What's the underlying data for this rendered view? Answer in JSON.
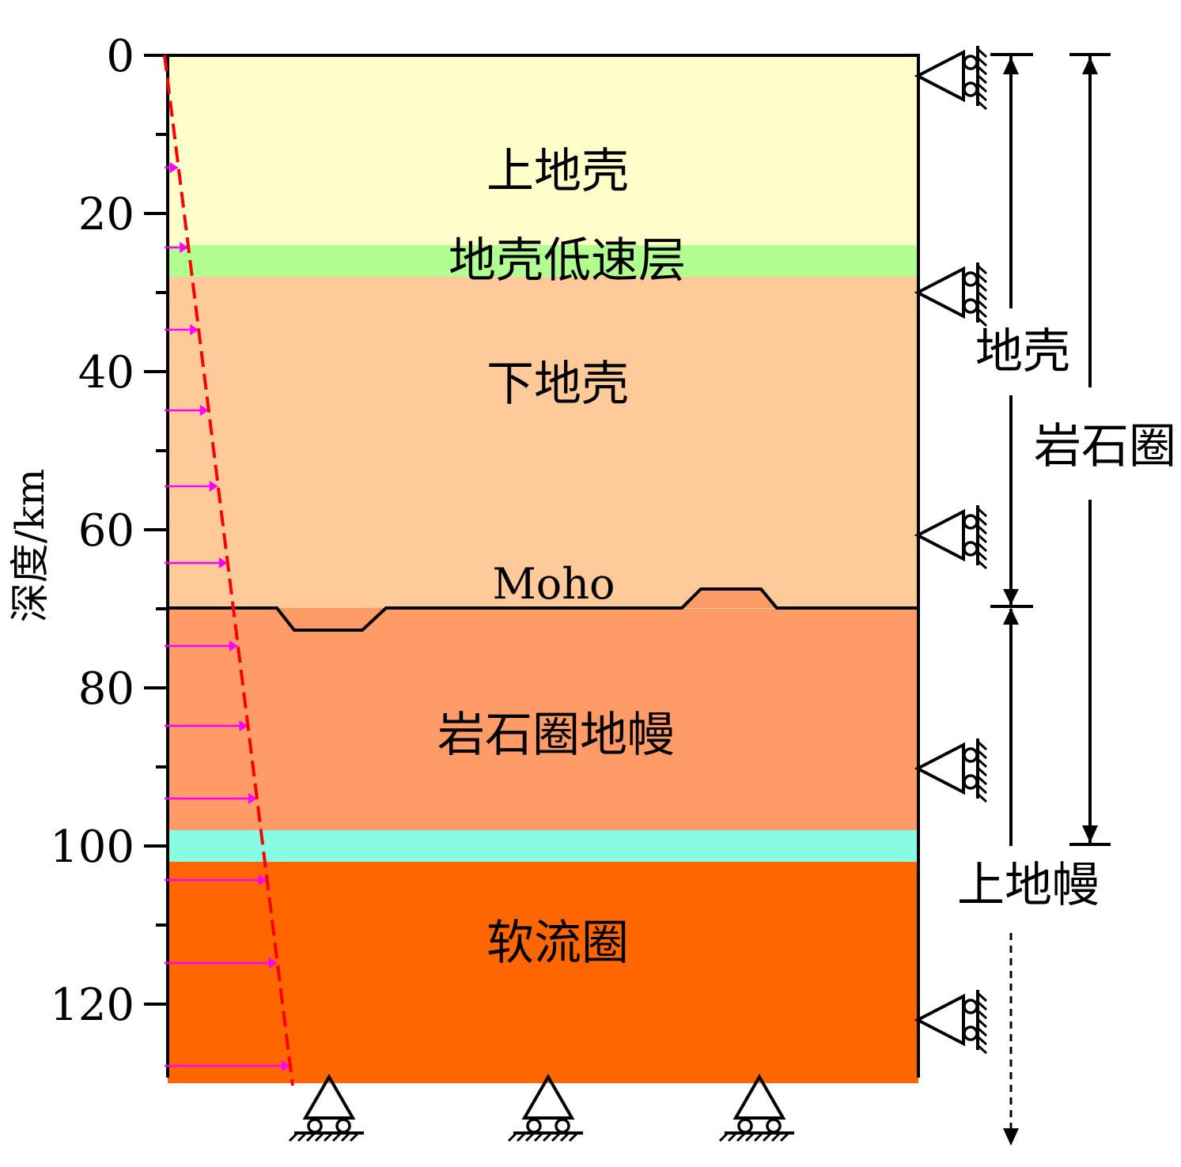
{
  "y_axis": {
    "label": "深度/km",
    "ticks": [
      "0",
      "20",
      "40",
      "60",
      "80",
      "100",
      "120"
    ],
    "tick_values": [
      0,
      20,
      40,
      60,
      80,
      100,
      120
    ],
    "minor_tick_values": [
      10,
      30,
      50,
      70,
      90,
      110
    ],
    "range": [
      0,
      130
    ]
  },
  "layers": [
    {
      "id": "upper-crust",
      "label": "上地壳",
      "top_km": 0,
      "bottom_km": 24,
      "color": "#FFFDC9"
    },
    {
      "id": "crust-low-velocity-layer",
      "label": "地壳低速层",
      "top_km": 24,
      "bottom_km": 28,
      "color": "#B1FF91"
    },
    {
      "id": "lower-crust",
      "label": "下地壳",
      "top_km": 28,
      "bottom_km": 70,
      "color": "#FFCA99"
    },
    {
      "id": "lithospheric-mantle",
      "label": "岩石圈地幔",
      "top_km": 70,
      "bottom_km": 98,
      "color": "#FF9B67"
    },
    {
      "id": "transition-layer",
      "label": "",
      "top_km": 98,
      "bottom_km": 102,
      "color": "#87FCE2"
    },
    {
      "id": "asthenosphere",
      "label": "软流圈",
      "top_km": 102,
      "bottom_km": 130,
      "color": "#FF6600"
    }
  ],
  "moho": {
    "label": "Moho",
    "depth_km": 70
  },
  "right_annotations": {
    "crust": "地壳",
    "lithosphere": "岩石圈",
    "upper_mantle": "上地幔"
  },
  "colors": {
    "pressure_line": "#FF0000",
    "pressure_arrows": "#FF00FF",
    "outline": "#000000"
  },
  "icons": {
    "side_supports": "roller-support-icon",
    "bottom_supports": "pin-roller-support-icon"
  }
}
